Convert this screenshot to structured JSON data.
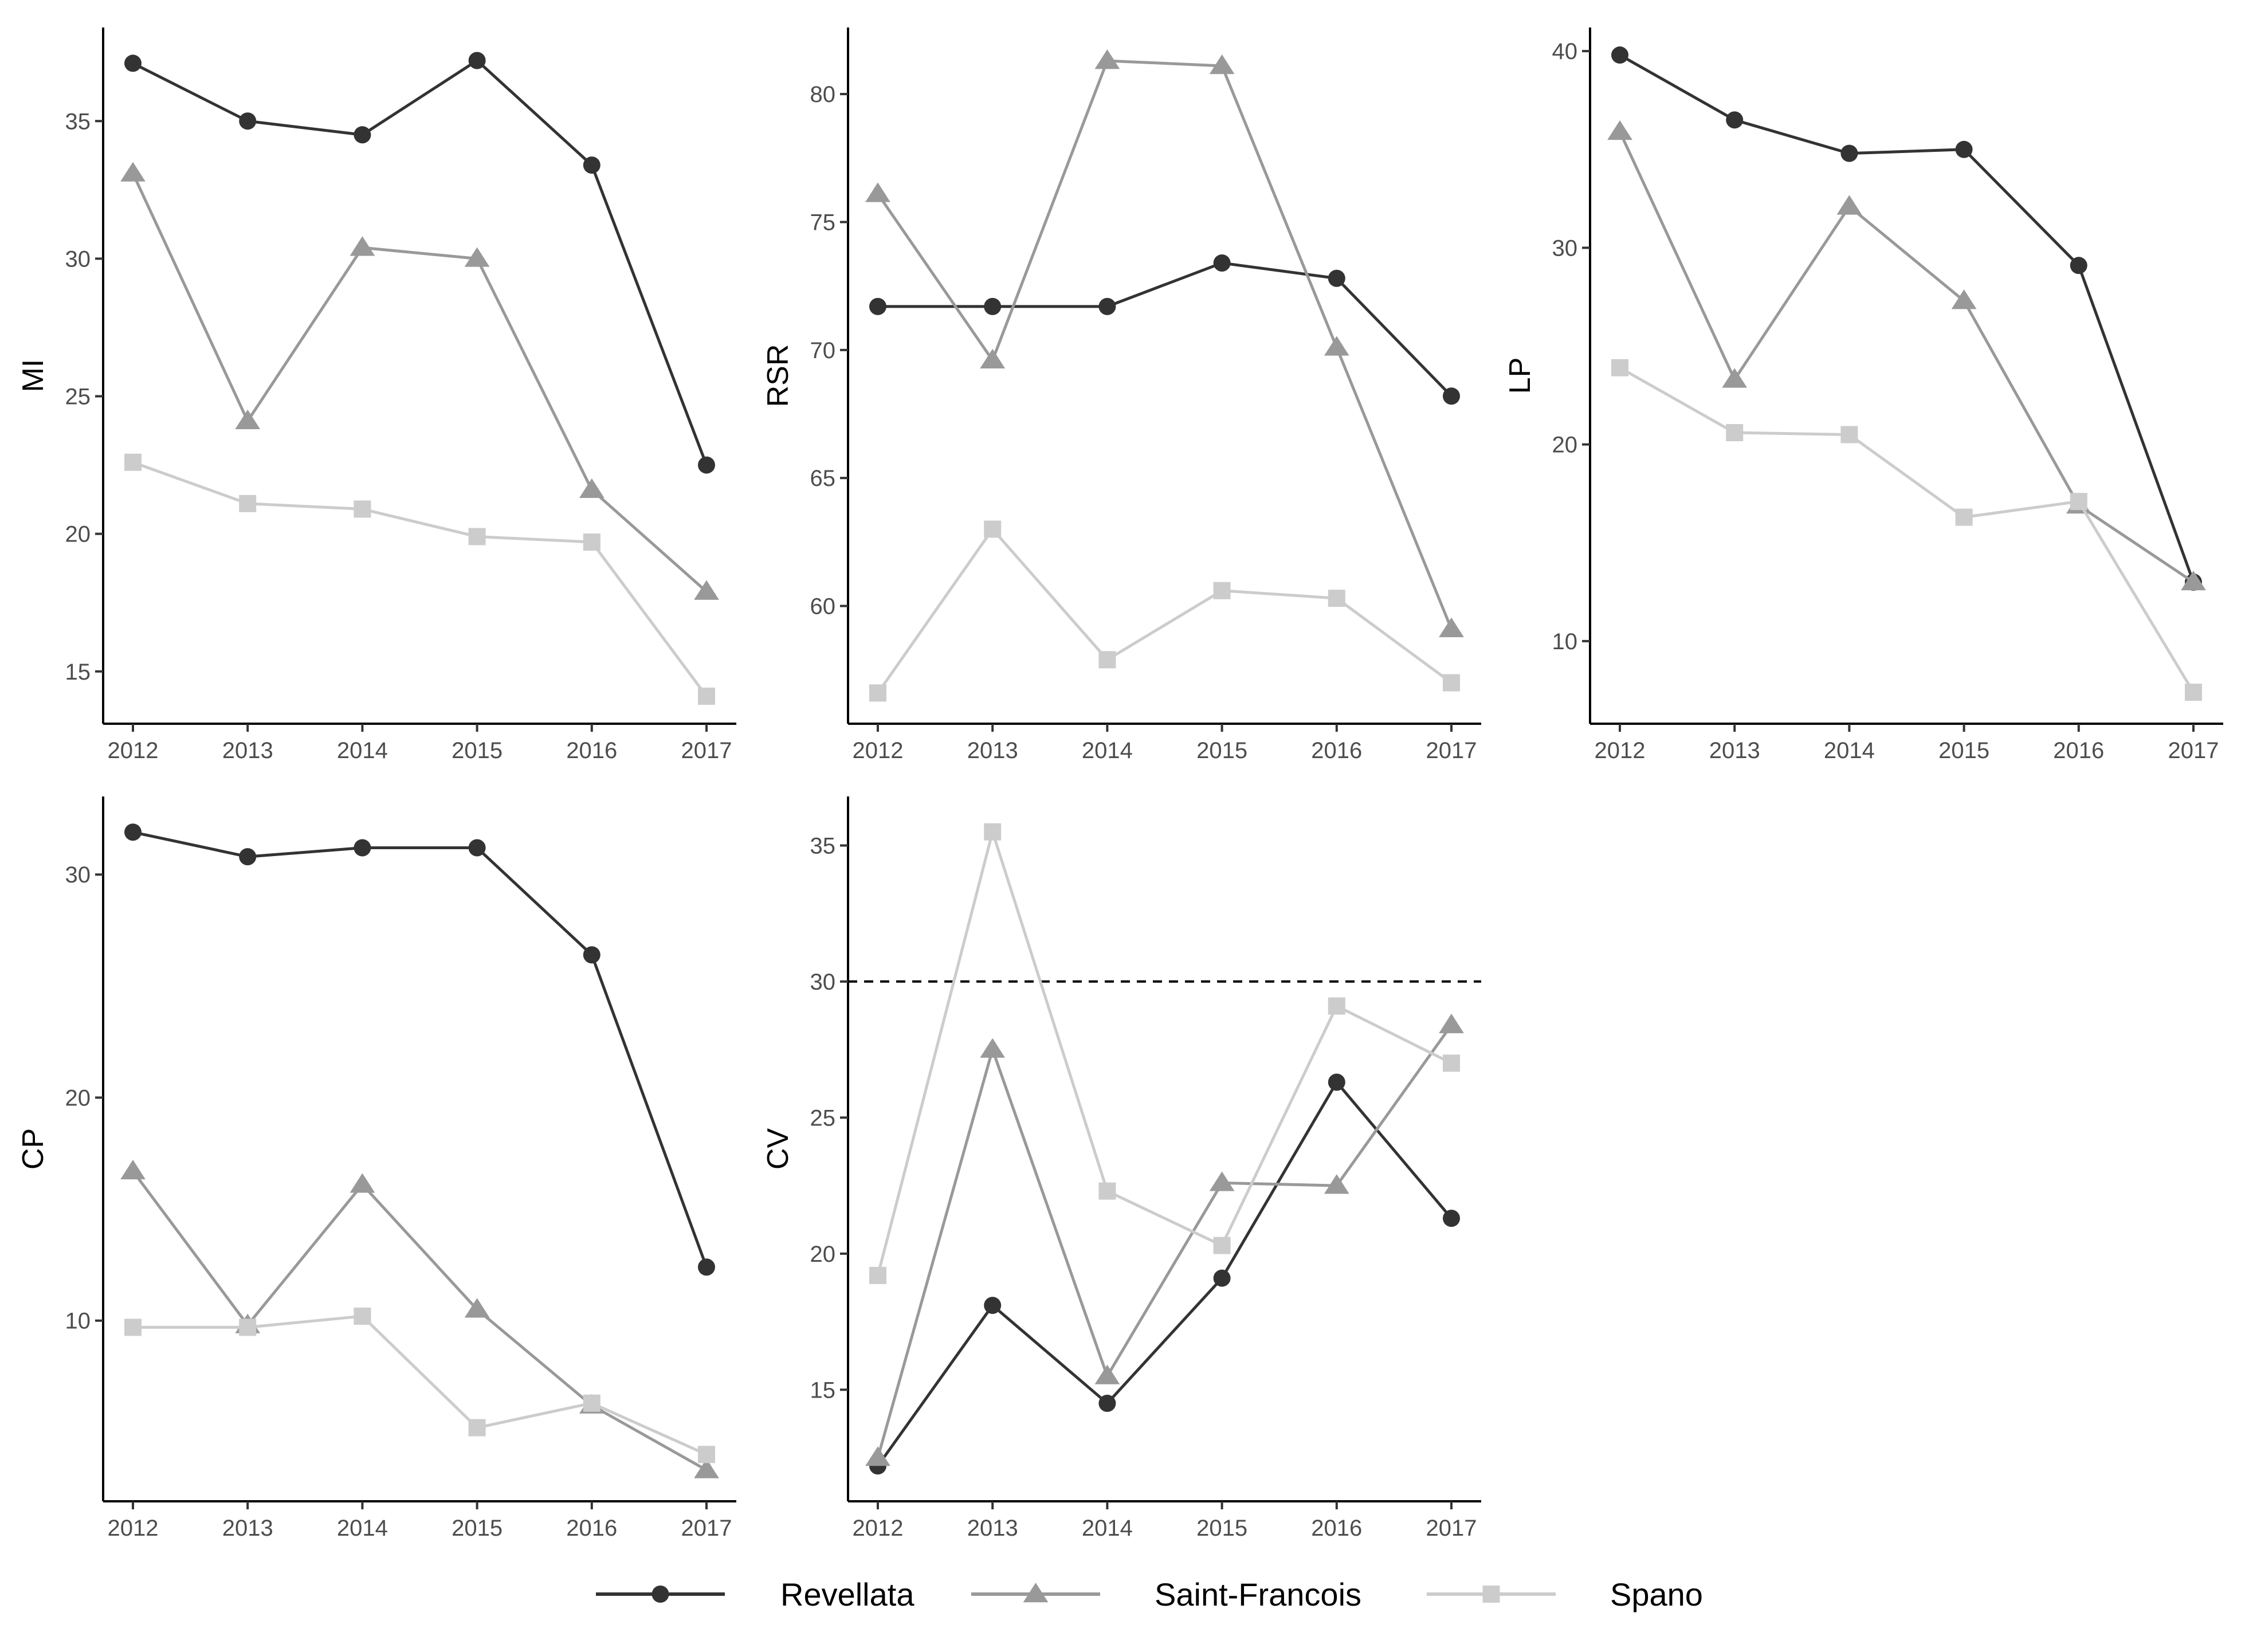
{
  "series_styles": {
    "Revellata": {
      "color": "#333333",
      "marker": "circle"
    },
    "Saint-Francois": {
      "color": "#999999",
      "marker": "triangle"
    },
    "Spano": {
      "color": "#cccccc",
      "marker": "square"
    }
  },
  "legend": {
    "items": [
      {
        "label": "Revellata",
        "color": "#333333",
        "marker": "circle"
      },
      {
        "label": "Saint-Francois",
        "color": "#999999",
        "marker": "triangle"
      },
      {
        "label": "Spano",
        "color": "#cccccc",
        "marker": "square"
      }
    ]
  },
  "chart_data": [
    {
      "type": "line",
      "ylabel": "MI",
      "xlabel": "",
      "x": [
        2012,
        2013,
        2014,
        2015,
        2016,
        2017
      ],
      "x_tick_labels": [
        "2012",
        "2013",
        "2014",
        "2015",
        "2016",
        "2017"
      ],
      "ylim": [
        13.1,
        38.4
      ],
      "y_ticks": [
        15,
        20,
        25,
        30,
        35
      ],
      "reference_line": null,
      "series": [
        {
          "name": "Revellata",
          "values": [
            37.1,
            35.0,
            34.5,
            37.2,
            33.4,
            22.5
          ]
        },
        {
          "name": "Saint-Francois",
          "values": [
            33.1,
            24.1,
            30.4,
            30.0,
            21.6,
            17.9
          ]
        },
        {
          "name": "Spano",
          "values": [
            22.6,
            21.1,
            20.9,
            19.9,
            19.7,
            14.1
          ]
        }
      ]
    },
    {
      "type": "line",
      "ylabel": "RSR",
      "xlabel": "",
      "x": [
        2012,
        2013,
        2014,
        2015,
        2016,
        2017
      ],
      "x_tick_labels": [
        "2012",
        "2013",
        "2014",
        "2015",
        "2016",
        "2017"
      ],
      "ylim": [
        55.4,
        82.6
      ],
      "y_ticks": [
        60,
        65,
        70,
        75,
        80
      ],
      "reference_line": null,
      "series": [
        {
          "name": "Revellata",
          "values": [
            71.7,
            71.7,
            71.7,
            73.4,
            72.8,
            68.2
          ]
        },
        {
          "name": "Saint-Francois",
          "values": [
            76.1,
            69.6,
            81.3,
            81.1,
            70.1,
            59.1
          ]
        },
        {
          "name": "Spano",
          "values": [
            56.6,
            63.0,
            57.9,
            60.6,
            60.3,
            57.0
          ]
        }
      ]
    },
    {
      "type": "line",
      "ylabel": "LP",
      "xlabel": "",
      "x": [
        2012,
        2013,
        2014,
        2015,
        2016,
        2017
      ],
      "x_tick_labels": [
        "2012",
        "2013",
        "2014",
        "2015",
        "2016",
        "2017"
      ],
      "ylim": [
        5.8,
        41.2
      ],
      "y_ticks": [
        10,
        20,
        30,
        40
      ],
      "reference_line": null,
      "series": [
        {
          "name": "Revellata",
          "values": [
            39.8,
            36.5,
            34.8,
            35.0,
            29.1,
            13.0
          ]
        },
        {
          "name": "Saint-Francois",
          "values": [
            35.9,
            23.3,
            32.1,
            27.3,
            16.9,
            13.0
          ]
        },
        {
          "name": "Spano",
          "values": [
            23.9,
            20.6,
            20.5,
            16.3,
            17.1,
            7.4
          ]
        }
      ]
    },
    {
      "type": "line",
      "ylabel": "CP",
      "xlabel": "",
      "x": [
        2012,
        2013,
        2014,
        2015,
        2016,
        2017
      ],
      "x_tick_labels": [
        "2012",
        "2013",
        "2014",
        "2015",
        "2016",
        "2017"
      ],
      "ylim": [
        1.9,
        33.5
      ],
      "y_ticks": [
        10,
        20,
        30
      ],
      "reference_line": null,
      "series": [
        {
          "name": "Revellata",
          "values": [
            31.9,
            30.8,
            31.2,
            31.2,
            26.4,
            12.4
          ]
        },
        {
          "name": "Saint-Francois",
          "values": [
            16.7,
            9.8,
            16.1,
            10.5,
            6.2,
            3.3
          ]
        },
        {
          "name": "Spano",
          "values": [
            9.7,
            9.7,
            10.2,
            5.2,
            6.3,
            4.0
          ]
        }
      ]
    },
    {
      "type": "line",
      "ylabel": "CV",
      "xlabel": "",
      "x": [
        2012,
        2013,
        2014,
        2015,
        2016,
        2017
      ],
      "x_tick_labels": [
        "2012",
        "2013",
        "2014",
        "2015",
        "2016",
        "2017"
      ],
      "ylim": [
        10.9,
        36.8
      ],
      "y_ticks": [
        15,
        20,
        25,
        30,
        35
      ],
      "reference_line": {
        "y": 30,
        "style": "dashed"
      },
      "series": [
        {
          "name": "Revellata",
          "values": [
            12.2,
            18.1,
            14.5,
            19.1,
            26.3,
            21.3
          ]
        },
        {
          "name": "Saint-Francois",
          "values": [
            12.5,
            27.5,
            15.5,
            22.6,
            22.5,
            28.4
          ]
        },
        {
          "name": "Spano",
          "values": [
            19.2,
            35.5,
            22.3,
            20.3,
            29.1,
            27.0
          ]
        }
      ]
    }
  ]
}
